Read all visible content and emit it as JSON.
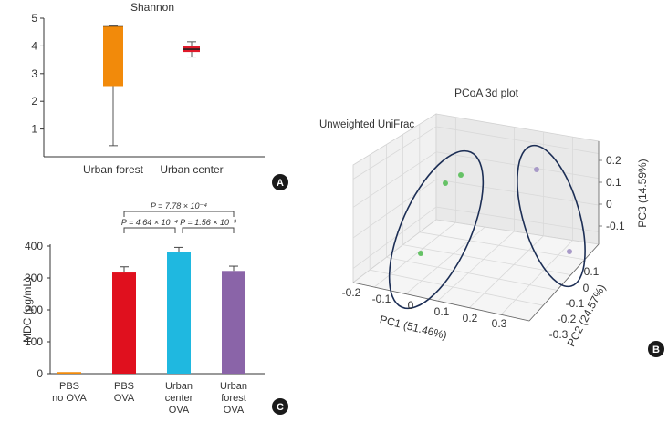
{
  "panels": {
    "A": {
      "badge": "A",
      "chart_data": {
        "type": "box",
        "title": "Shannon",
        "categories": [
          "Urban forest",
          "Urban center"
        ],
        "ylim": [
          0,
          5
        ],
        "yticks": [
          1,
          2,
          3,
          4,
          5
        ],
        "series": [
          {
            "category": "Urban forest",
            "color": "#f28a0a",
            "min": 0.4,
            "q1": 2.55,
            "median": 4.72,
            "q3": 4.72,
            "max": 4.75
          },
          {
            "category": "Urban center",
            "color": "#e01a2a",
            "min": 3.6,
            "q1": 3.78,
            "median": 3.88,
            "q3": 3.98,
            "max": 4.15
          }
        ]
      }
    },
    "B": {
      "badge": "B",
      "chart_data": {
        "type": "scatter",
        "title": "PCoA 3d plot",
        "subtitle": "Unweighted UniFrac",
        "xlabel": "PC1 (51.46%)",
        "ylabel": "PC2 (24.57%)",
        "zlabel": "PC3 (14.59%)",
        "xticks": [
          "-0.2",
          "-0.1",
          "0",
          "0.1",
          "0.2",
          "0.3"
        ],
        "yticks": [
          "0.1",
          "0",
          "-0.1",
          "-0.2",
          "-0.3"
        ],
        "zticks": [
          "0.2",
          "0.1",
          "0",
          "-0.1"
        ],
        "series": [
          {
            "group": "green",
            "color": "#66c266",
            "points": 3
          },
          {
            "group": "purple",
            "color": "#a89ac8",
            "points": 2
          }
        ]
      }
    },
    "C": {
      "badge": "C",
      "chart_data": {
        "type": "bar",
        "ylabel": "MDC (pg/mL)",
        "ylim": [
          0,
          400
        ],
        "yticks": [
          0,
          100,
          200,
          300,
          400
        ],
        "categories": [
          [
            "PBS",
            "no OVA"
          ],
          [
            "PBS",
            "OVA"
          ],
          [
            "Urban",
            "center",
            "OVA"
          ],
          [
            "Urban",
            "forest",
            "OVA"
          ]
        ],
        "values": [
          5,
          317,
          382,
          322
        ],
        "errors": [
          0,
          18,
          14,
          15
        ],
        "colors": [
          "#f28a0a",
          "#e0101e",
          "#1fb8e0",
          "#8a64a8"
        ],
        "annotations": [
          {
            "text": "P = 7.78 × 10⁻⁴",
            "from": 1,
            "to": 3,
            "level": 2
          },
          {
            "text": "P = 4.64 × 10⁻⁴",
            "from": 1,
            "to": 2,
            "level": 1
          },
          {
            "text": "P = 1.56 × 10⁻³",
            "from": 2,
            "to": 3,
            "level": 1
          }
        ]
      }
    }
  }
}
